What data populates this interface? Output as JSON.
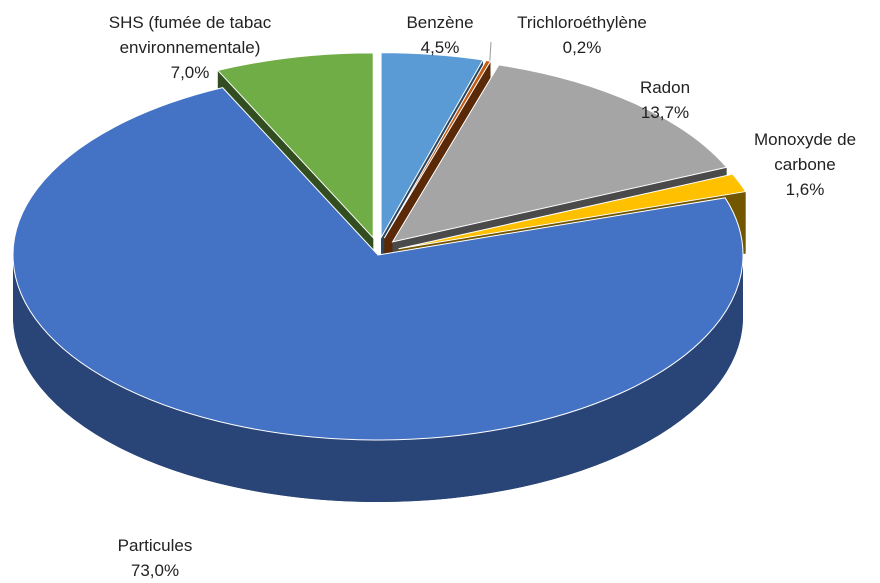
{
  "chart_data": {
    "type": "pie",
    "categories": [
      "Benzène",
      "Trichloroéthylène",
      "Radon",
      "Monoxyde de carbone",
      "Particules",
      "SHS (fumée de tabac environnementale)"
    ],
    "values": [
      4.5,
      0.2,
      13.7,
      1.6,
      73.0,
      7.0
    ],
    "value_labels": [
      "4,5%",
      "0,2%",
      "13,7%",
      "1,6%",
      "73,0%",
      "7,0%"
    ],
    "colors": [
      "#5b9bd5",
      "#c55a11",
      "#a5a5a5",
      "#ffc000",
      "#4472c4",
      "#70ad47"
    ]
  }
}
